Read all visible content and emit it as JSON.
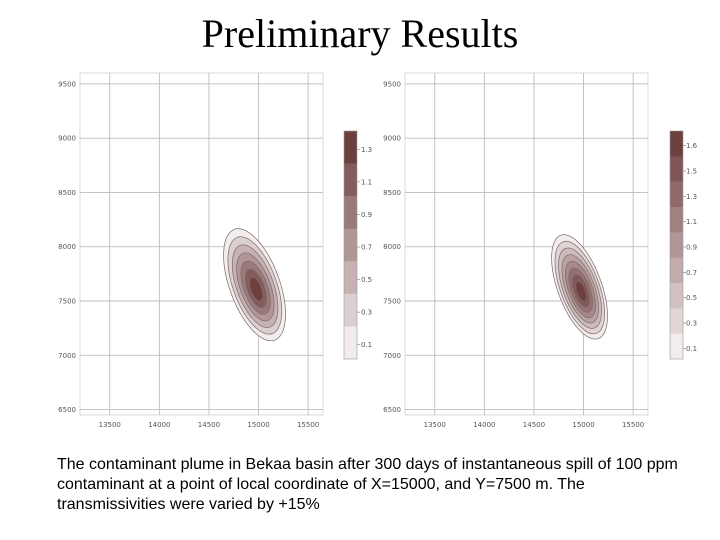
{
  "slide": {
    "title": "Preliminary Results",
    "caption": "The contaminant plume in Bekaa basin after 300 days of instantaneous spill of 100 ppm contaminant at a point of local coordinate of X=15000, and Y=7500  m. The transmissivities were varied by +15%"
  },
  "chart_data": [
    {
      "type": "contour",
      "title": "",
      "xlabel": "",
      "ylabel": "",
      "x_ticks": [
        "13500",
        "14000",
        "14500",
        "15000",
        "15500"
      ],
      "y_ticks": [
        "9500",
        "9000",
        "8500",
        "8000",
        "7500",
        "7000",
        "6500"
      ],
      "xlim": [
        13200,
        15650
      ],
      "ylim": [
        6450,
        9600
      ],
      "grid": true,
      "plume_center": [
        14960,
        7650
      ],
      "contour_levels": [
        0.1,
        0.3,
        0.5,
        0.7,
        0.9,
        1.1,
        1.3
      ],
      "colorbar_labels": [
        "1.3",
        "1.1",
        "0.9",
        "0.7",
        "0.5",
        "0.3",
        "0.1"
      ]
    },
    {
      "type": "contour",
      "title": "",
      "xlabel": "",
      "ylabel": "",
      "x_ticks": [
        "13500",
        "14000",
        "14500",
        "15000",
        "15500"
      ],
      "y_ticks": [
        "9500",
        "9000",
        "8500",
        "8000",
        "7500",
        "7000",
        "6500"
      ],
      "xlim": [
        13200,
        15650
      ],
      "ylim": [
        6450,
        9600
      ],
      "grid": true,
      "plume_center": [
        14960,
        7630
      ],
      "contour_levels": [
        0.1,
        0.3,
        0.5,
        0.7,
        0.9,
        1.1,
        1.3,
        1.5
      ],
      "colorbar_labels": [
        "1.6",
        "1.5",
        "1.3",
        "1.1",
        "0.9",
        "0.7",
        "0.5",
        "0.3",
        "0.1"
      ]
    }
  ],
  "colors": {
    "gradient_low": "#f2ecec",
    "gradient_high": "#6e3f3f",
    "contour_line": "#7d6a6a",
    "grid": "#bdbdbd"
  }
}
